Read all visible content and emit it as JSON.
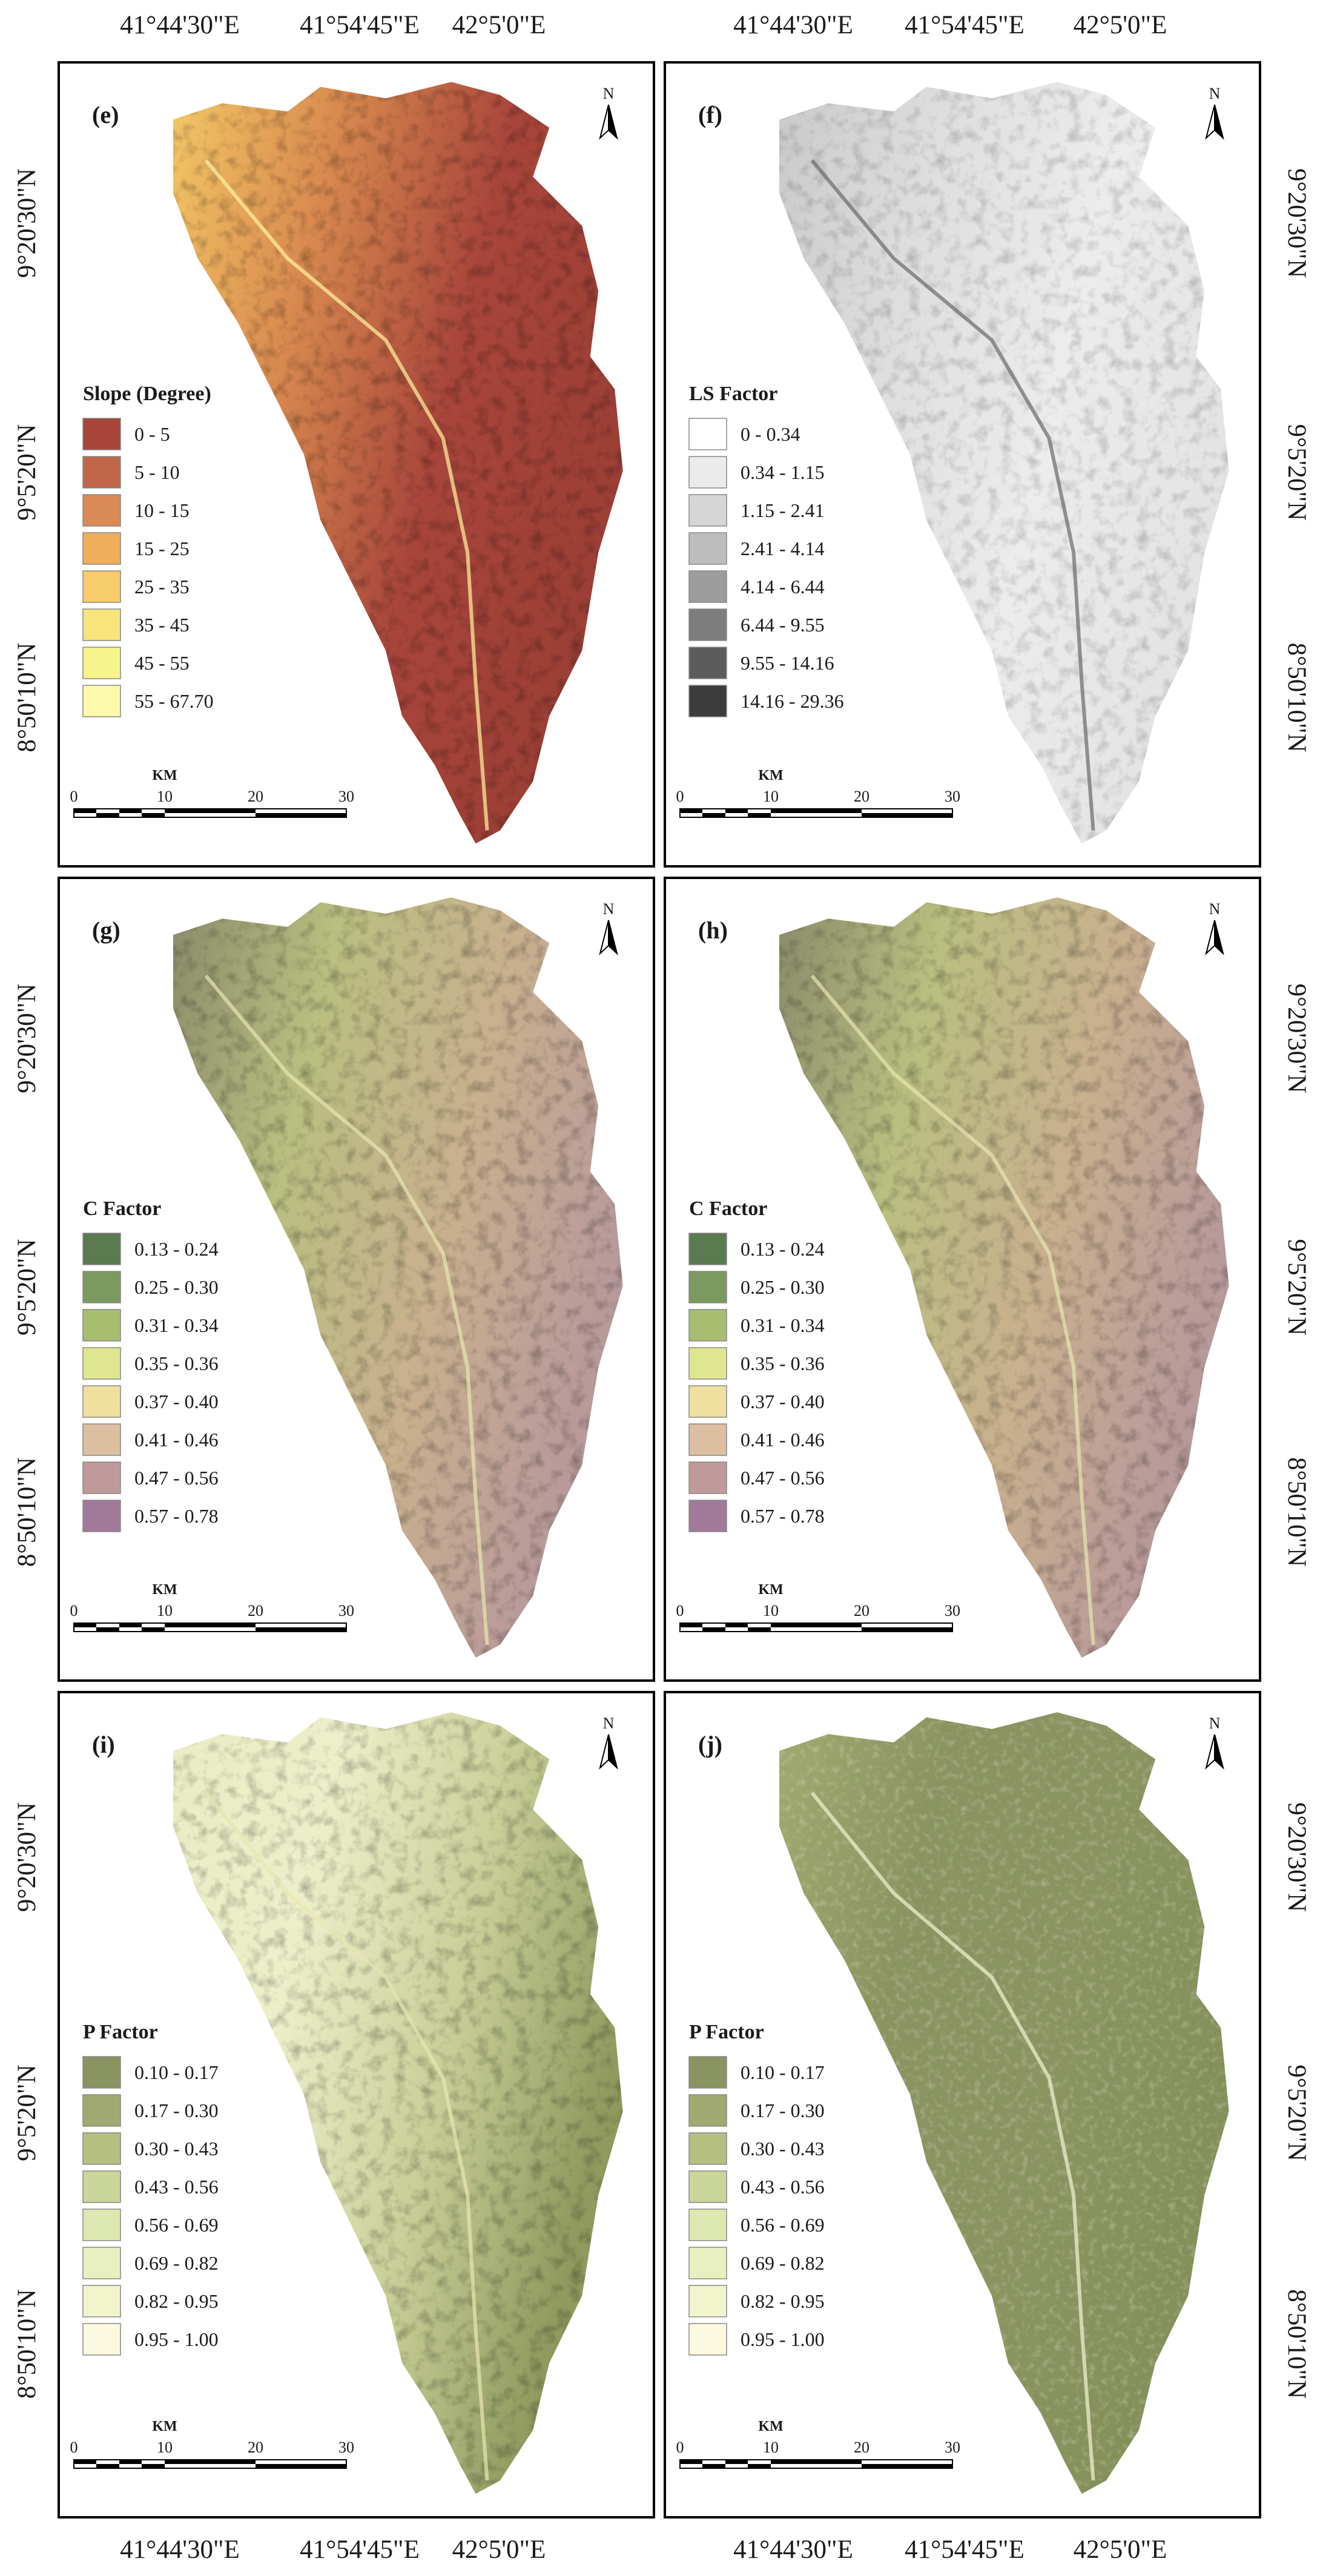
{
  "top_labels": {
    "left": [
      "41°44'30\"E",
      "41°54'45\"E",
      "42°5'0\"E"
    ],
    "right": [
      "41°44'30\"E",
      "41°54'45\"E",
      "42°5'0\"E"
    ]
  },
  "bottom_labels": {
    "left": [
      "41°44'30\"E",
      "41°54'45\"E",
      "42°5'0\"E"
    ],
    "right": [
      "41°44'30\"E",
      "41°54'45\"E",
      "42°5'0\"E"
    ]
  },
  "rows": [
    {
      "left_labels": [
        "9°20'30\"N",
        "9°5'20\"N",
        "8°50'10\"N"
      ],
      "right_labels": [
        "9°20'30\"N",
        "9°5'20\"N",
        "8°50'10\"N"
      ]
    },
    {
      "left_labels": [
        "9°20'30\"N",
        "9°5'20\"N",
        "8°50'10\"N"
      ],
      "right_labels": [
        "9°20'30\"N",
        "9°5'20\"N",
        "8°50'10\"N"
      ]
    },
    {
      "left_labels": [
        "9°20'30\"N",
        "9°5'20\"N",
        "8°50'10\"N"
      ],
      "right_labels": [
        "9°20'30\"N",
        "9°5'20\"N",
        "8°50'10\"N"
      ]
    }
  ],
  "panels": [
    {
      "letter": "(e)",
      "north": "N",
      "legend_title": "Slope (Degree)",
      "scale_unit": "KM",
      "scale_ticks": [
        "0",
        "10",
        "20",
        "30"
      ],
      "legend": [
        {
          "label": "0 - 5",
          "color": "#a8453b"
        },
        {
          "label": "5 - 10",
          "color": "#c0674a"
        },
        {
          "label": "10 - 15",
          "color": "#d98a55"
        },
        {
          "label": "15 - 25",
          "color": "#f0ad5a"
        },
        {
          "label": "25 - 35",
          "color": "#f7cc6a"
        },
        {
          "label": "35 - 45",
          "color": "#f7e47a"
        },
        {
          "label": "45 - 55",
          "color": "#f5f58c"
        },
        {
          "label": "55 - 67.70",
          "color": "#fafaaa"
        }
      ]
    },
    {
      "letter": "(f)",
      "north": "N",
      "legend_title": "LS Factor",
      "scale_unit": "KM",
      "scale_ticks": [
        "0",
        "10",
        "20",
        "30"
      ],
      "legend": [
        {
          "label": "0 - 0.34",
          "color": "#ffffff"
        },
        {
          "label": "0.34 - 1.15",
          "color": "#ebebeb"
        },
        {
          "label": "1.15 - 2.41",
          "color": "#d6d6d6"
        },
        {
          "label": "2.41 - 4.14",
          "color": "#bdbdbd"
        },
        {
          "label": "4.14 - 6.44",
          "color": "#9c9c9c"
        },
        {
          "label": "6.44 - 9.55",
          "color": "#7d7d7d"
        },
        {
          "label": "9.55 - 14.16",
          "color": "#5c5c5c"
        },
        {
          "label": "14.16 - 29.36",
          "color": "#3c3c3c"
        }
      ]
    },
    {
      "letter": "(g)",
      "north": "N",
      "legend_title": "C Factor",
      "scale_unit": "KM",
      "scale_ticks": [
        "0",
        "10",
        "20",
        "30"
      ],
      "legend": [
        {
          "label": "0.13 - 0.24",
          "color": "#5a7a50"
        },
        {
          "label": "0.25 - 0.30",
          "color": "#7a9a60"
        },
        {
          "label": "0.31 - 0.34",
          "color": "#a8bd70"
        },
        {
          "label": "0.35 - 0.36",
          "color": "#dfe690"
        },
        {
          "label": "0.37 - 0.40",
          "color": "#f0e0a0"
        },
        {
          "label": "0.41 - 0.46",
          "color": "#dcbfa0"
        },
        {
          "label": "0.47 - 0.56",
          "color": "#c09a9a"
        },
        {
          "label": "0.57 - 0.78",
          "color": "#a07a98"
        }
      ]
    },
    {
      "letter": "(h)",
      "north": "N",
      "legend_title": "C Factor",
      "scale_unit": "KM",
      "scale_ticks": [
        "0",
        "10",
        "20",
        "30"
      ],
      "legend": [
        {
          "label": "0.13 - 0.24",
          "color": "#5a7a50"
        },
        {
          "label": "0.25 - 0.30",
          "color": "#7a9a60"
        },
        {
          "label": "0.31 - 0.34",
          "color": "#a8bd70"
        },
        {
          "label": "0.35 - 0.36",
          "color": "#dfe690"
        },
        {
          "label": "0.37 - 0.40",
          "color": "#f0e0a0"
        },
        {
          "label": "0.41 - 0.46",
          "color": "#dcbfa0"
        },
        {
          "label": "0.47 - 0.56",
          "color": "#c09a9a"
        },
        {
          "label": "0.57 - 0.78",
          "color": "#a07a98"
        }
      ]
    },
    {
      "letter": "(i)",
      "north": "N",
      "legend_title": "P Factor",
      "scale_unit": "KM",
      "scale_ticks": [
        "0",
        "10",
        "20",
        "30"
      ],
      "legend": [
        {
          "label": "0.10 - 0.17",
          "color": "#8a9460"
        },
        {
          "label": "0.17 - 0.30",
          "color": "#a0aa70"
        },
        {
          "label": "0.30 - 0.43",
          "color": "#b5c080"
        },
        {
          "label": "0.43 - 0.56",
          "color": "#cad69a"
        },
        {
          "label": "0.56 - 0.69",
          "color": "#dde8b0"
        },
        {
          "label": "0.69 - 0.82",
          "color": "#e8f0c0"
        },
        {
          "label": "0.82 - 0.95",
          "color": "#f2f5cc"
        },
        {
          "label": "0.95 - 1.00",
          "color": "#fbfae0"
        }
      ]
    },
    {
      "letter": "(j)",
      "north": "N",
      "legend_title": "P Factor",
      "scale_unit": "KM",
      "scale_ticks": [
        "0",
        "10",
        "20",
        "30"
      ],
      "legend": [
        {
          "label": "0.10 - 0.17",
          "color": "#8a9460"
        },
        {
          "label": "0.17 - 0.30",
          "color": "#a0aa70"
        },
        {
          "label": "0.30 - 0.43",
          "color": "#b5c080"
        },
        {
          "label": "0.43 - 0.56",
          "color": "#cad69a"
        },
        {
          "label": "0.56 - 0.69",
          "color": "#dde8b0"
        },
        {
          "label": "0.69 - 0.82",
          "color": "#e8f0c0"
        },
        {
          "label": "0.82 - 0.95",
          "color": "#f2f5cc"
        },
        {
          "label": "0.95 - 1.00",
          "color": "#fbfae0"
        }
      ]
    }
  ]
}
